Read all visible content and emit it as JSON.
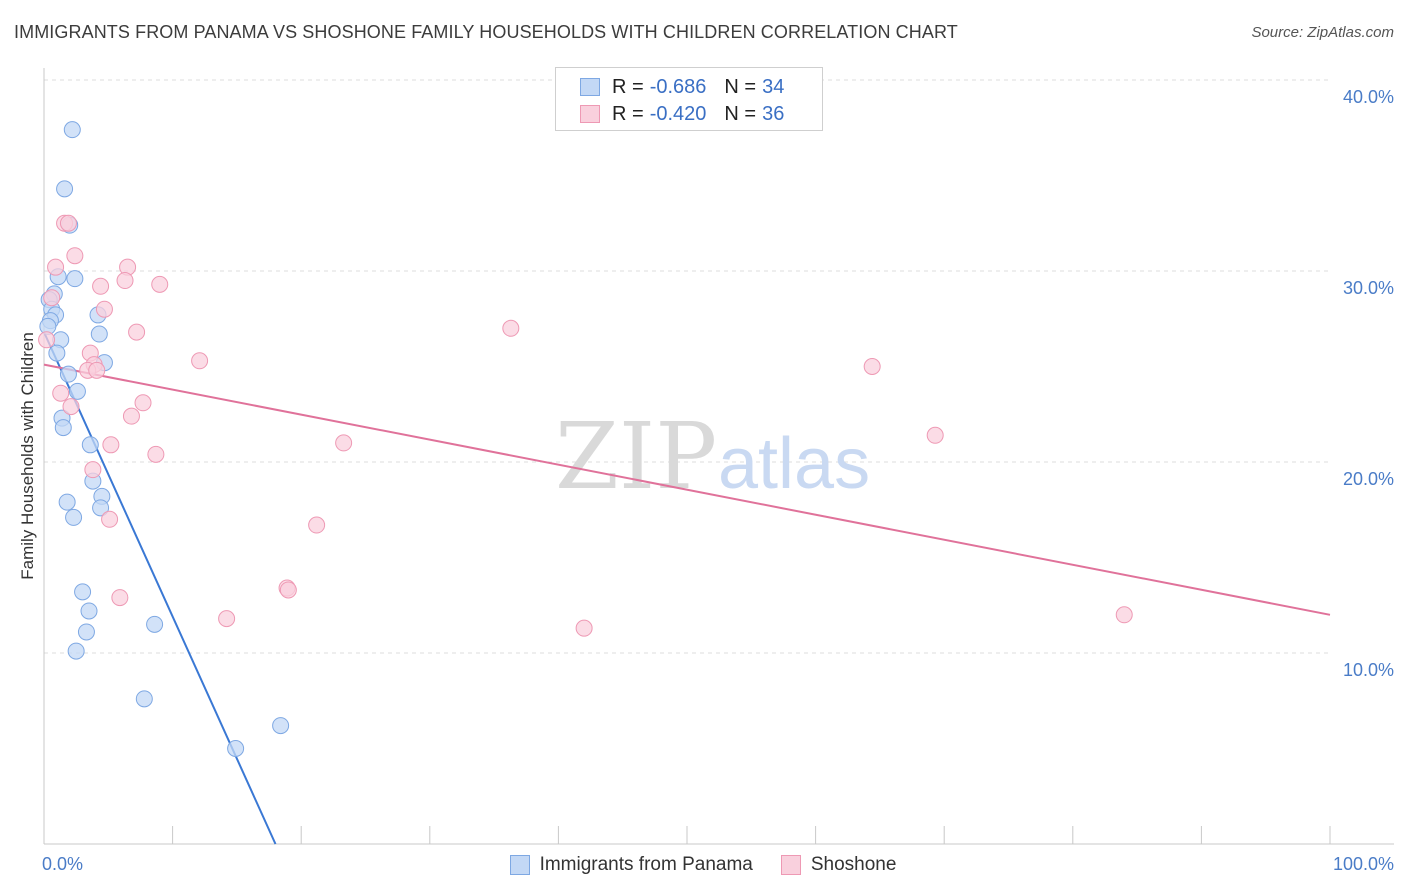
{
  "header": {
    "title": "IMMIGRANTS FROM PANAMA VS SHOSHONE FAMILY HOUSEHOLDS WITH CHILDREN CORRELATION CHART",
    "source": "Source: ZipAtlas.com"
  },
  "watermark": {
    "zip": "ZIP",
    "atlas": "atlas"
  },
  "legend": {
    "rows": [
      {
        "r_label": "R =",
        "r_value": "-0.686",
        "n_label": "N =",
        "n_value": "34",
        "color": "#9fc3f0"
      },
      {
        "r_label": "R =",
        "r_value": "-0.420",
        "n_label": "N =",
        "n_value": "36",
        "color": "#f5b8cb"
      }
    ]
  },
  "bottom_legend": {
    "items": [
      {
        "label": "Immigrants from Panama",
        "color": "#b7d2f5"
      },
      {
        "label": "Shoshone",
        "color": "#f8c6d5"
      }
    ]
  },
  "colors": {
    "blue_fill": "#c3d8f5",
    "blue_stroke": "#7ea8e3",
    "blue_line": "#3a78d4",
    "pink_fill": "#f9d0dd",
    "pink_stroke": "#ee99b4",
    "pink_line": "#e0729a",
    "grid": "#dcdcdc",
    "axis_text": "#4a7cc7"
  },
  "chart_data": {
    "type": "scatter",
    "title": "IMMIGRANTS FROM PANAMA VS SHOSHONE FAMILY HOUSEHOLDS WITH CHILDREN CORRELATION CHART",
    "xlabel": "",
    "ylabel": "Family Households with Children",
    "xlim": [
      0,
      100
    ],
    "ylim": [
      0,
      40
    ],
    "y_ticks": [
      10,
      20,
      30,
      40
    ],
    "y_tick_labels": [
      "10.0%",
      "20.0%",
      "30.0%",
      "40.0%"
    ],
    "x_tick_labels": [
      "0.0%",
      "100.0%"
    ],
    "grid": true,
    "series": [
      {
        "name": "Immigrants from Panama",
        "points": [
          [
            2.2,
            37.4
          ],
          [
            1.6,
            34.3
          ],
          [
            2.0,
            32.4
          ],
          [
            1.1,
            29.7
          ],
          [
            2.4,
            29.6
          ],
          [
            0.8,
            28.8
          ],
          [
            0.4,
            28.5
          ],
          [
            0.6,
            28.0
          ],
          [
            0.9,
            27.7
          ],
          [
            0.5,
            27.4
          ],
          [
            0.3,
            27.1
          ],
          [
            4.2,
            27.7
          ],
          [
            4.3,
            26.7
          ],
          [
            1.3,
            26.4
          ],
          [
            1.0,
            25.7
          ],
          [
            4.7,
            25.2
          ],
          [
            1.9,
            24.6
          ],
          [
            2.6,
            23.7
          ],
          [
            1.4,
            22.3
          ],
          [
            1.5,
            21.8
          ],
          [
            3.6,
            20.9
          ],
          [
            3.8,
            19.0
          ],
          [
            4.5,
            18.2
          ],
          [
            1.8,
            17.9
          ],
          [
            4.4,
            17.6
          ],
          [
            2.3,
            17.1
          ],
          [
            3.0,
            13.2
          ],
          [
            3.5,
            12.2
          ],
          [
            8.6,
            11.5
          ],
          [
            3.3,
            11.1
          ],
          [
            2.5,
            10.1
          ],
          [
            7.8,
            7.6
          ],
          [
            18.4,
            6.2
          ],
          [
            14.9,
            5.0
          ]
        ],
        "trendline": [
          [
            0.0,
            26.8
          ],
          [
            18.0,
            0.0
          ]
        ]
      },
      {
        "name": "Shoshone",
        "points": [
          [
            1.6,
            32.5
          ],
          [
            1.9,
            32.5
          ],
          [
            2.4,
            30.8
          ],
          [
            0.9,
            30.2
          ],
          [
            6.5,
            30.2
          ],
          [
            6.3,
            29.5
          ],
          [
            4.4,
            29.2
          ],
          [
            9.0,
            29.3
          ],
          [
            0.6,
            28.6
          ],
          [
            4.7,
            28.0
          ],
          [
            7.2,
            26.8
          ],
          [
            0.2,
            26.4
          ],
          [
            3.6,
            25.7
          ],
          [
            3.9,
            25.1
          ],
          [
            3.4,
            24.8
          ],
          [
            4.1,
            24.8
          ],
          [
            12.1,
            25.3
          ],
          [
            1.3,
            23.6
          ],
          [
            7.7,
            23.1
          ],
          [
            2.1,
            22.9
          ],
          [
            6.8,
            22.4
          ],
          [
            5.2,
            20.9
          ],
          [
            8.7,
            20.4
          ],
          [
            23.3,
            21.0
          ],
          [
            3.8,
            19.6
          ],
          [
            5.1,
            17.0
          ],
          [
            21.2,
            16.7
          ],
          [
            18.9,
            13.4
          ],
          [
            19.0,
            13.3
          ],
          [
            5.9,
            12.9
          ],
          [
            14.2,
            11.8
          ],
          [
            36.3,
            27.0
          ],
          [
            64.4,
            25.0
          ],
          [
            69.3,
            21.4
          ],
          [
            84.0,
            12.0
          ],
          [
            42.0,
            11.3
          ]
        ],
        "trendline": [
          [
            0.0,
            25.1
          ],
          [
            100.0,
            12.0
          ]
        ]
      }
    ]
  }
}
